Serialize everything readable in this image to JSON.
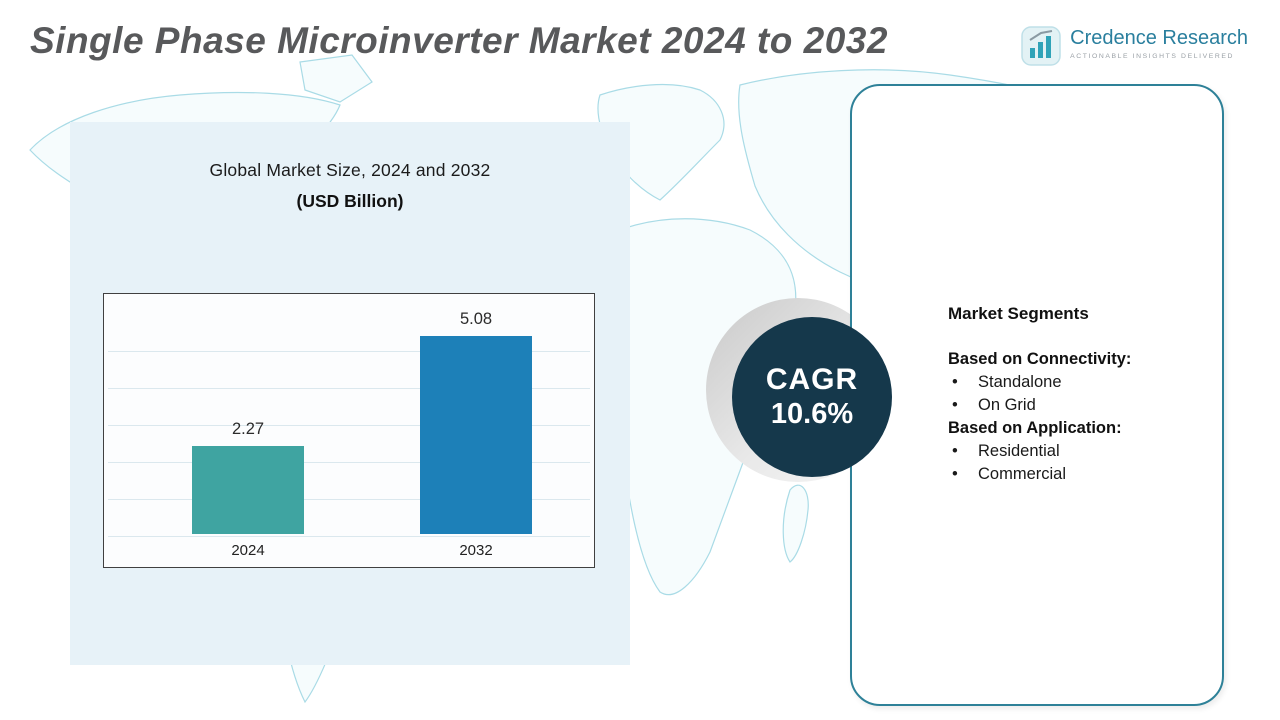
{
  "page": {
    "title": "Single Phase Microinverter Market 2024 to 2032"
  },
  "logo": {
    "name": "Credence Research",
    "tagline": "Actionable Insights Delivered"
  },
  "chart_panel": {
    "title_line1": "Global Market Size, 2024 and 2032",
    "title_line2": "(USD Billion)"
  },
  "chart_data": {
    "type": "bar",
    "title": "Global Market Size, 2024 and 2032 (USD Billion)",
    "categories": [
      "2024",
      "2032"
    ],
    "values": [
      2.27,
      5.08
    ],
    "value_labels": [
      "2.27",
      "5.08"
    ],
    "ylim": [
      0,
      6
    ],
    "grid": true,
    "legend": "none",
    "bar_colors": [
      "#3fa4a1",
      "#1d80b8"
    ]
  },
  "cagr": {
    "label": "CAGR",
    "value": "10.6%"
  },
  "segments": {
    "heading": "Market Segments",
    "groups": [
      {
        "title": "Based on Connectivity:",
        "items": [
          "Standalone",
          "On Grid"
        ]
      },
      {
        "title": "Based on Application:",
        "items": [
          "Residential",
          "Commercial"
        ]
      }
    ]
  },
  "colors": {
    "accent_teal": "#3fa4a1",
    "accent_blue": "#1d80b8",
    "cagr_circle": "#15384b",
    "card_border": "#2e8198",
    "panel_bg": "#e7f2f8",
    "map_line": "#a9dbe6",
    "title_gray": "#58595b",
    "logo_blue": "#2a7f9e"
  }
}
